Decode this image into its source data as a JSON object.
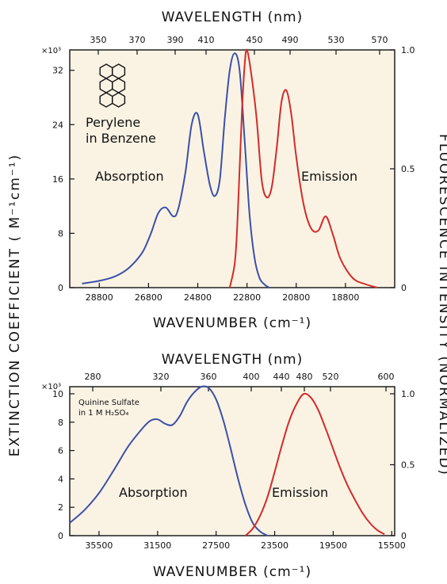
{
  "y_axis_left_label": "EXTINCTION COEFFICIENT ( M⁻¹cm⁻¹)",
  "y_axis_right_label": "FLUORESCENCE INTENSITY (NORMALIZED)",
  "colors": {
    "absorption": "#3a50a8",
    "emission": "#d42a2a",
    "background": "#faf3e4"
  },
  "chart_data": [
    {
      "type": "line",
      "top_axis_label": "WAVELENGTH (nm)",
      "top_ticks": [
        "350",
        "370",
        "390",
        "410",
        "450",
        "490",
        "530",
        "570"
      ],
      "xlabel": "WAVENUMBER (cm⁻¹)",
      "x_ticks": [
        "28800",
        "26800",
        "24800",
        "22800",
        "20800",
        "18800"
      ],
      "xlim": [
        30000,
        16800
      ],
      "y_multiplier": "×10³",
      "y_ticks": [
        "0",
        "8",
        "16",
        "24",
        "32"
      ],
      "ylim": [
        0,
        35
      ],
      "y2_ticks": [
        "0",
        "0.5",
        "1.0"
      ],
      "y2lim": [
        0,
        1.0
      ],
      "annotations": {
        "compound_line1": "Perylene",
        "compound_line2": "in Benzene",
        "absorption": "Absorption",
        "emission": "Emission"
      },
      "series": [
        {
          "axis": "left",
          "x": [
            29500,
            28800,
            28200,
            27700,
            27300,
            27000,
            26700,
            26400,
            26100,
            25800,
            25600,
            25300,
            25050,
            24800,
            24550,
            24300,
            24100,
            23900,
            23700,
            23500,
            23300,
            23100,
            22900,
            22700,
            22500,
            22300,
            22100,
            21900
          ],
          "y": [
            0.6,
            1.0,
            1.6,
            2.6,
            4.0,
            5.5,
            8.0,
            11.0,
            11.8,
            10.5,
            11.5,
            17.0,
            24.0,
            25.5,
            20.0,
            15.0,
            13.5,
            16.0,
            25.0,
            32.0,
            34.5,
            32.0,
            22.0,
            11.0,
            4.5,
            1.5,
            0.5,
            0.0
          ]
        },
        {
          "axis": "right",
          "x": [
            23500,
            23300,
            23200,
            23100,
            23000,
            22900,
            22800,
            22600,
            22400,
            22200,
            22000,
            21800,
            21600,
            21400,
            21200,
            21000,
            20800,
            20500,
            20200,
            19900,
            19600,
            19300,
            19000,
            18500,
            18000,
            17500
          ],
          "y": [
            0.0,
            0.1,
            0.25,
            0.5,
            0.75,
            0.93,
            1.0,
            0.88,
            0.7,
            0.45,
            0.38,
            0.42,
            0.58,
            0.78,
            0.83,
            0.73,
            0.55,
            0.35,
            0.25,
            0.24,
            0.3,
            0.22,
            0.12,
            0.04,
            0.015,
            0.0
          ]
        }
      ]
    },
    {
      "type": "line",
      "top_axis_label": "WAVELENGTH (nm)",
      "top_ticks": [
        "280",
        "320",
        "360",
        "400",
        "440",
        "480",
        "520",
        "600"
      ],
      "xlabel": "WAVENUMBER (cm⁻¹)",
      "x_ticks": [
        "35500",
        "31500",
        "27500",
        "23500",
        "19500",
        "15500"
      ],
      "xlim": [
        37500,
        15300
      ],
      "y_multiplier": "×10³",
      "y_ticks": [
        "0",
        "2",
        "4",
        "6",
        "8",
        "10"
      ],
      "ylim": [
        0,
        10.5
      ],
      "y2_ticks": [
        "0",
        "0.5",
        "1.0"
      ],
      "y2lim": [
        0,
        1.05
      ],
      "annotations": {
        "compound_line1": "Quinine Sulfate",
        "compound_line2": "in 1 M H₂SO₄",
        "absorption": "Absorption",
        "emission": "Emission"
      },
      "series": [
        {
          "axis": "left",
          "x": [
            37500,
            36500,
            35500,
            34500,
            33500,
            32500,
            32000,
            31500,
            31000,
            30500,
            30000,
            29500,
            29000,
            28500,
            28000,
            27500,
            27000,
            26500,
            26000,
            25500,
            25000,
            24500,
            24000
          ],
          "y": [
            0.9,
            1.8,
            3.0,
            4.6,
            6.3,
            7.6,
            8.1,
            8.2,
            7.9,
            7.8,
            8.4,
            9.4,
            10.1,
            10.5,
            10.4,
            9.6,
            8.1,
            6.1,
            4.0,
            2.2,
            0.9,
            0.3,
            0.0
          ]
        },
        {
          "axis": "right",
          "x": [
            25500,
            25000,
            24500,
            24000,
            23500,
            23000,
            22500,
            22000,
            21500,
            21000,
            20500,
            20000,
            19500,
            19000,
            18500,
            18000,
            17500,
            17000,
            16500,
            16000
          ],
          "y": [
            0.0,
            0.05,
            0.14,
            0.27,
            0.45,
            0.64,
            0.81,
            0.93,
            1.0,
            0.97,
            0.88,
            0.75,
            0.61,
            0.47,
            0.35,
            0.25,
            0.16,
            0.09,
            0.04,
            0.01
          ]
        }
      ]
    }
  ]
}
